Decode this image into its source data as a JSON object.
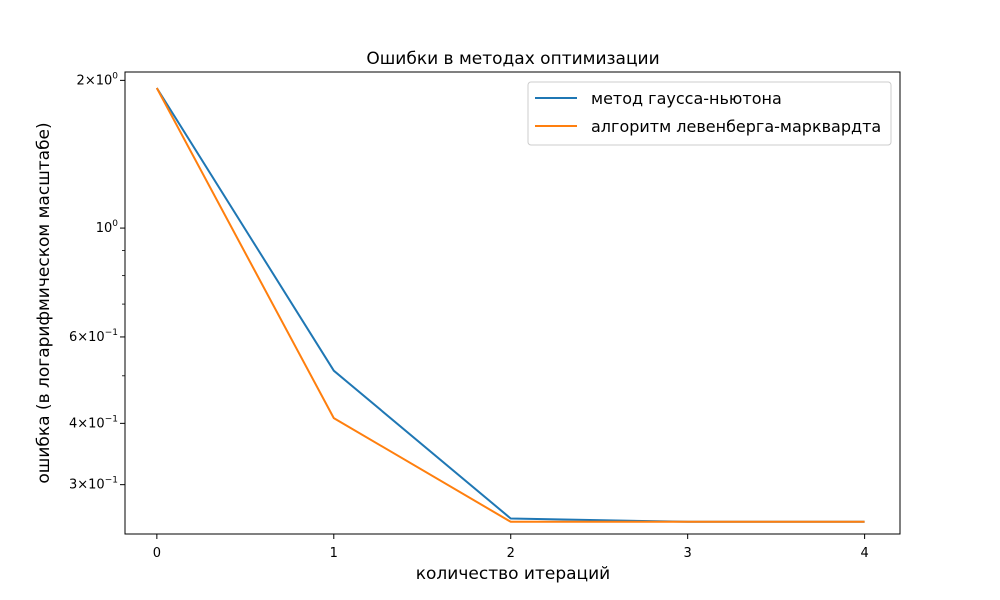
{
  "chart_data": {
    "type": "line",
    "title": "Ошибки в методах оптимизации",
    "xlabel": "количество итераций",
    "ylabel": "ошибка (в логарифмическом масштабе)",
    "yscale": "log",
    "x": [
      0,
      1,
      2,
      3,
      4
    ],
    "xlim": [
      -0.18,
      4.2
    ],
    "ylim": [
      0.238,
      2.08
    ],
    "x_ticks": [
      "0",
      "1",
      "2",
      "3",
      "4"
    ],
    "y_ticks": [
      {
        "value": 2,
        "mantissa": "2",
        "exponent": "0"
      },
      {
        "value": 1,
        "mantissa": "10",
        "exponent": "0"
      },
      {
        "value": 0.6,
        "mantissa": "6",
        "exponent": "−1"
      },
      {
        "value": 0.4,
        "mantissa": "4",
        "exponent": "−1"
      },
      {
        "value": 0.3,
        "mantissa": "3",
        "exponent": "−1"
      }
    ],
    "y_minor_ticks": [
      0.5,
      0.7,
      0.8,
      0.9
    ],
    "grid": false,
    "legend_position": "top-right",
    "series": [
      {
        "name": "метод гаусса-ньютона",
        "color": "#1f77b4",
        "values": [
          1.93,
          0.512,
          0.256,
          0.252,
          0.252
        ]
      },
      {
        "name": "алгоритм левенберга-марквардта",
        "color": "#ff7f0e",
        "values": [
          1.93,
          0.41,
          0.252,
          0.252,
          0.252
        ]
      }
    ]
  }
}
